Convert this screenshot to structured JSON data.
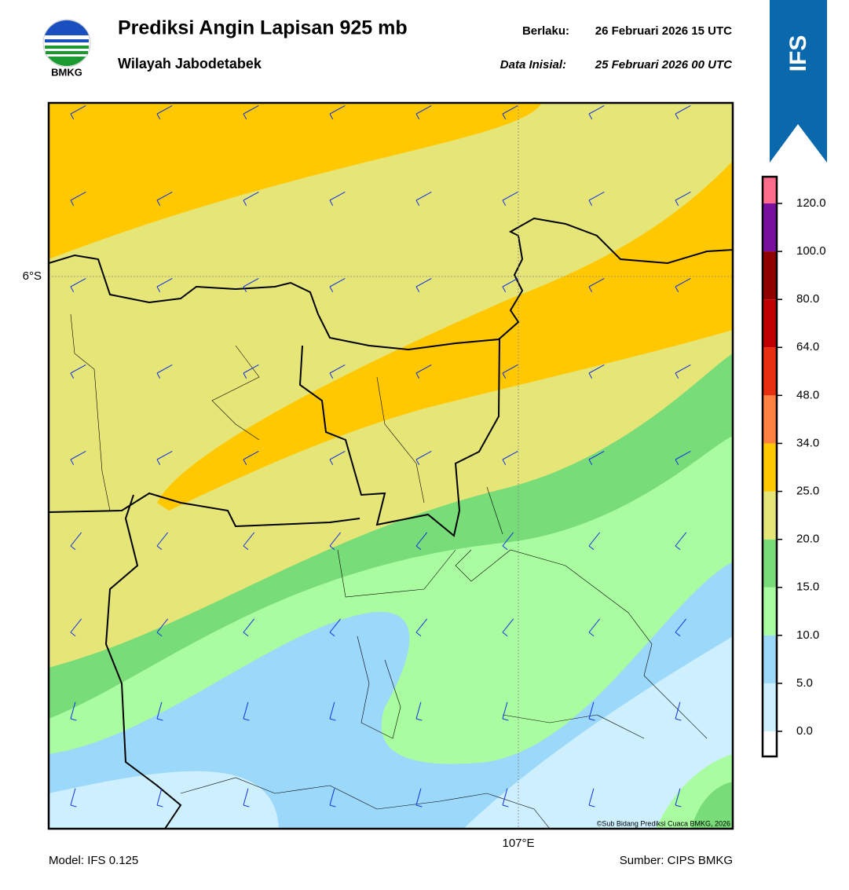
{
  "header": {
    "title": "Prediksi Angin Lapisan 925 mb",
    "subtitle": "Wilayah Jabodetabek",
    "valid_label": "Berlaku:",
    "valid_time": "26 Februari 2026 15 UTC",
    "init_label": "Data Inisial:",
    "init_time": "25 Februari 2026 00 UTC",
    "logo_text": "BMKG",
    "model_badge": "IFS"
  },
  "map": {
    "lat_label": "6°S",
    "lon_label": "107°E",
    "credit": "©Sub Bidang Prediksi Cuaca BMKG, 2026"
  },
  "colorbar": {
    "colors": [
      "#ffffff",
      "#cdeffe",
      "#9bd8f9",
      "#aafca0",
      "#78dc78",
      "#e6e678",
      "#ffc800",
      "#ff8040",
      "#e83010",
      "#c00000",
      "#900000",
      "#7a10a0",
      "#ff6b8a"
    ],
    "ticks": [
      {
        "value": 0,
        "label": "0.0"
      },
      {
        "value": 5,
        "label": "5.0"
      },
      {
        "value": 10,
        "label": "10.0"
      },
      {
        "value": 15,
        "label": "15.0"
      },
      {
        "value": 20,
        "label": "20.0"
      },
      {
        "value": 25,
        "label": "25.0"
      },
      {
        "value": 34,
        "label": "34.0"
      },
      {
        "value": 48,
        "label": "48.0"
      },
      {
        "value": 64,
        "label": "64.0"
      },
      {
        "value": 80,
        "label": "80.0"
      },
      {
        "value": 100,
        "label": "100.0"
      },
      {
        "value": 120,
        "label": "120.0"
      }
    ]
  },
  "footer": {
    "model": "Model: IFS 0.125",
    "source": "Sumber: CIPS BMKG"
  }
}
